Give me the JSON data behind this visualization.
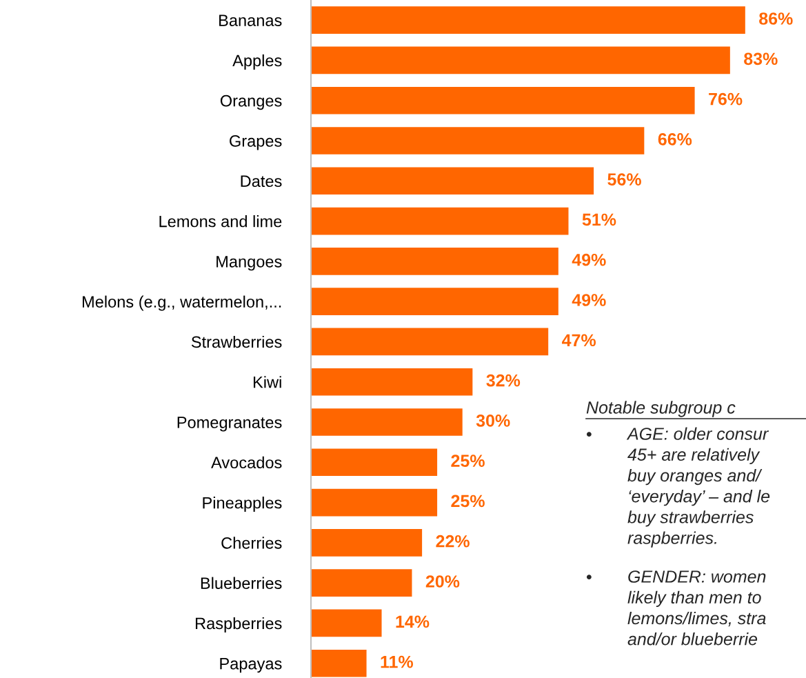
{
  "chart_data": {
    "type": "bar",
    "orientation": "horizontal",
    "categories": [
      "Bananas",
      "Apples",
      "Oranges",
      "Grapes",
      "Dates",
      "Lemons and lime",
      "Mangoes",
      "Melons (e.g., watermelon,...",
      "Strawberries",
      "Kiwi",
      "Pomegranates",
      "Avocados",
      "Pineapples",
      "Cherries",
      "Blueberries",
      "Raspberries",
      "Papayas"
    ],
    "values": [
      86,
      83,
      76,
      66,
      56,
      51,
      49,
      49,
      47,
      32,
      30,
      25,
      25,
      22,
      20,
      14,
      11
    ],
    "value_labels": [
      "86%",
      "83%",
      "76%",
      "66%",
      "56%",
      "51%",
      "49%",
      "49%",
      "47%",
      "32%",
      "30%",
      "25%",
      "25%",
      "22%",
      "20%",
      "14%",
      "11%"
    ],
    "color": "#ff6600",
    "annotations": [
      "Notable subgroup c",
      "•AGE: older consur\n45+ are relatively\nbuy oranges and/\n‘everyday’ – and le\nbuy strawberries\nraspberries.",
      "•GENDER: women\nlikely than men to\nlemons/limes, stra\nand/or blueberrie"
    ]
  }
}
